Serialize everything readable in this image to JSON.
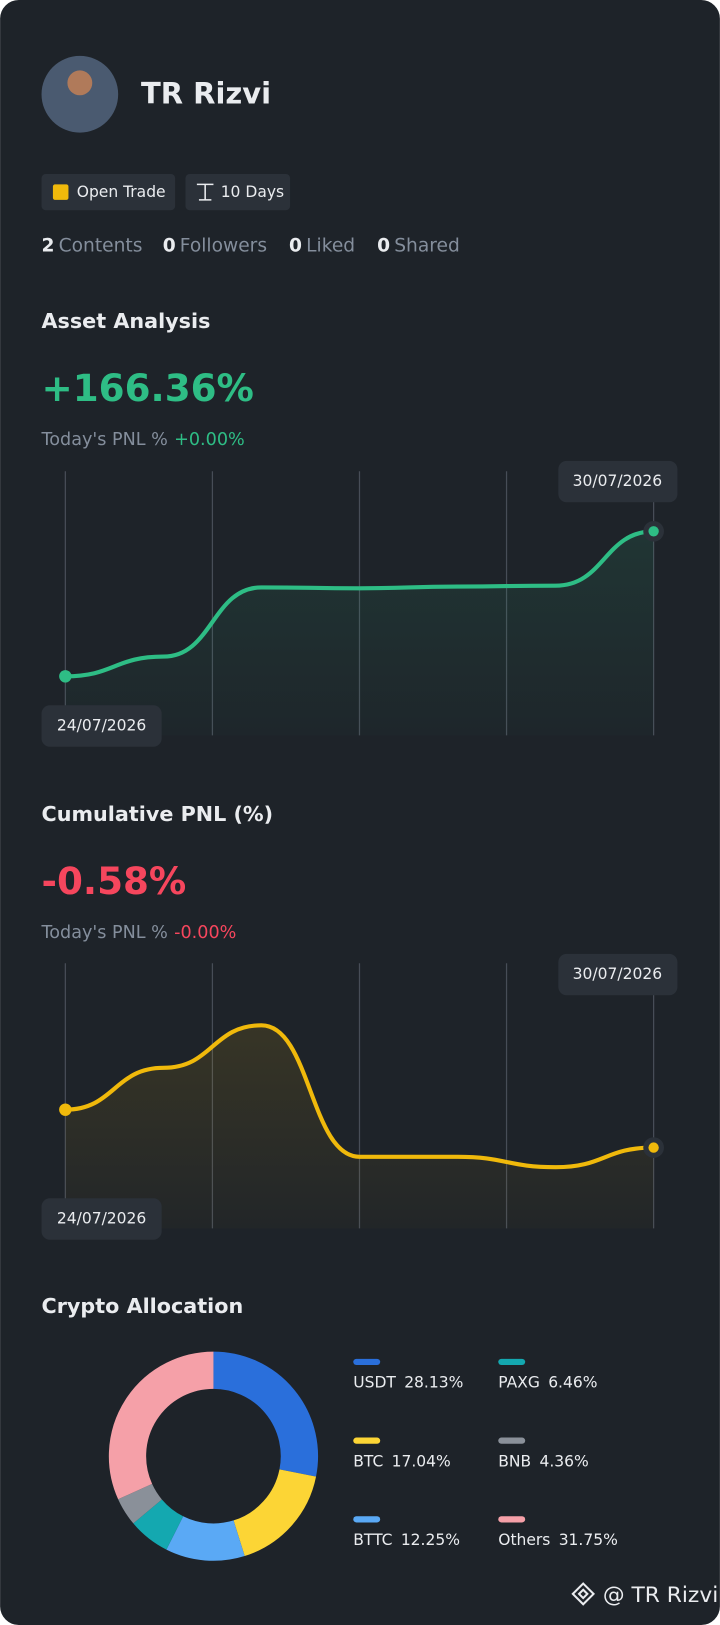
{
  "profile": {
    "name": "TR Rizvi",
    "badges": [
      "Open Trade",
      "10 Days"
    ],
    "stats": [
      {
        "value": 2,
        "label": "Contents"
      },
      {
        "value": 0,
        "label": "Followers"
      },
      {
        "value": 0,
        "label": "Liked"
      },
      {
        "value": 0,
        "label": "Shared"
      }
    ]
  },
  "asset_analysis": {
    "title": "Asset Analysis",
    "headline": "+166.36%",
    "today_label": "Today's PNL %",
    "today_value": "+0.00%",
    "start_date": "24/07/2026",
    "end_date": "30/07/2026",
    "chart": {
      "type": "line",
      "color": "#2ebd85",
      "values": [
        0,
        22.6,
        102,
        101,
        103,
        104,
        166.36
      ]
    }
  },
  "cumulative_pnl": {
    "title": "Cumulative PNL (%)",
    "headline": "-0.58%",
    "today_label": "Today's PNL %",
    "today_value": "-0.00%",
    "start_date": "24/07/2026",
    "end_date": "30/07/2026",
    "chart": {
      "type": "line",
      "color": "#f0b90b",
      "values": [
        0,
        0.64,
        1.29,
        -0.72,
        -0.72,
        -0.88,
        -0.58
      ]
    }
  },
  "crypto_allocation": {
    "title": "Crypto Allocation",
    "chart": {
      "type": "pie",
      "categories": [
        "USDT",
        "BTC",
        "BTTC",
        "PAXG",
        "BNB",
        "Others"
      ],
      "values": [
        28.13,
        17.04,
        12.25,
        6.46,
        4.36,
        31.75
      ],
      "value_labels": [
        "28.13%",
        "17.04%",
        "12.25%",
        "6.46%",
        "4.36%",
        "31.75%"
      ],
      "colors": [
        "#2a6fdb",
        "#fcd535",
        "#5aa9f5",
        "#14a8b0",
        "#8a9099",
        "#f5a0a8"
      ]
    }
  },
  "watermark": "@ TR Rizvi"
}
